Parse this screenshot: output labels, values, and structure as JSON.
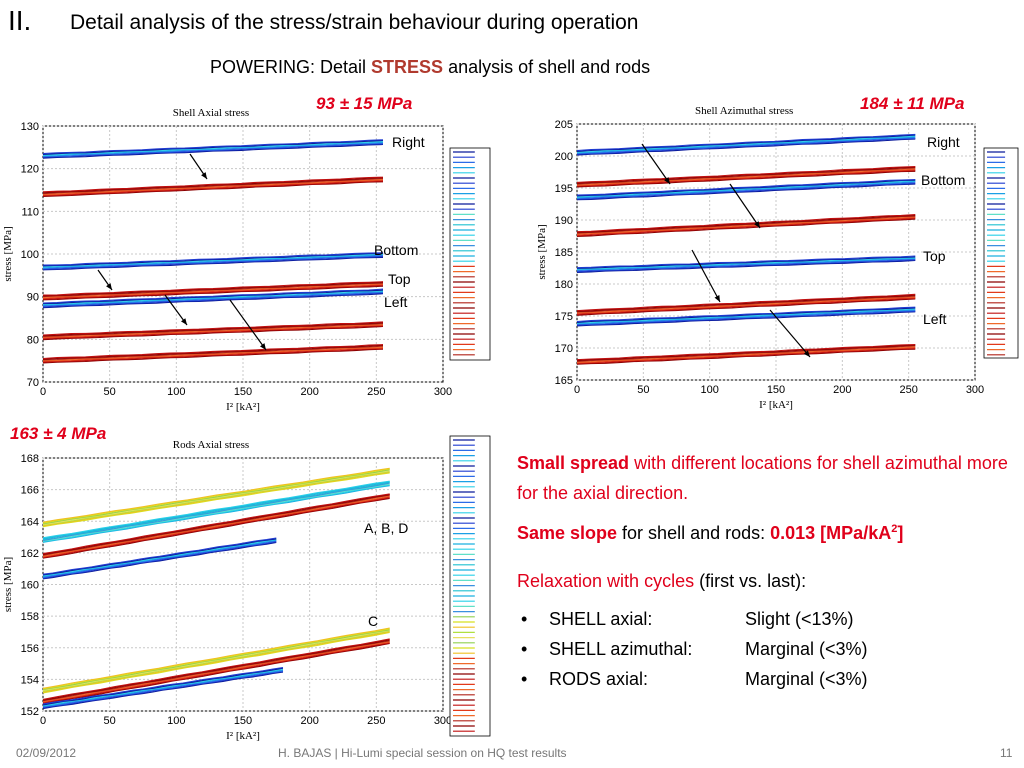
{
  "slide": {
    "number_label": "II.",
    "title": "Detail analysis of the stress/strain behaviour during operation",
    "subtitle_pre": "POWERING: Detail ",
    "subtitle_emph": "STRESS",
    "subtitle_post": " analysis of shell and rods",
    "colors": {
      "accent_red": "#e0001b",
      "dark_red": "#b03a2e"
    }
  },
  "charts": {
    "shell_axial": {
      "value_label": "93 ± 15 MPa"
    },
    "shell_azimuthal": {
      "value_label": "184 ± 11 MPa"
    },
    "rods_axial": {
      "value_label": "163 ± 4 MPa"
    }
  },
  "chart_data": [
    {
      "type": "line",
      "title": "Shell Axial stress",
      "xlabel": "I² [kA²]",
      "ylabel": "stress [MPa]",
      "xlim": [
        0,
        300
      ],
      "ylim": [
        70,
        130
      ],
      "x_ticks": [
        "0",
        "50",
        "100",
        "150",
        "200",
        "250",
        "300"
      ],
      "y_ticks": [
        "70",
        "80",
        "90",
        "100",
        "110",
        "120",
        "130"
      ],
      "grid": true,
      "series": [
        {
          "name": "Right",
          "color": "blue",
          "x": [
            0,
            255
          ],
          "values": [
            123,
            126.2
          ]
        },
        {
          "name": "Right",
          "color": "red",
          "x": [
            0,
            255
          ],
          "values": [
            114,
            117.5
          ]
        },
        {
          "name": "Bottom",
          "color": "blue",
          "x": [
            0,
            255
          ],
          "values": [
            96.8,
            99.8
          ]
        },
        {
          "name": "Top",
          "color": "red",
          "x": [
            0,
            255
          ],
          "values": [
            89.8,
            93
          ]
        },
        {
          "name": "Left",
          "color": "blue",
          "x": [
            0,
            255
          ],
          "values": [
            88,
            91.2
          ]
        },
        {
          "name": "",
          "color": "red",
          "x": [
            0,
            255
          ],
          "values": [
            80.5,
            83.5
          ]
        },
        {
          "name": "",
          "color": "red",
          "x": [
            0,
            255
          ],
          "values": [
            75,
            78.2
          ]
        }
      ],
      "annotations": [
        "Right",
        "Bottom",
        "Top",
        "Left"
      ]
    },
    {
      "type": "line",
      "title": "Shell Azimuthal stress",
      "xlabel": "I² [kA²]",
      "ylabel": "stress [MPa]",
      "xlim": [
        0,
        300
      ],
      "ylim": [
        165,
        205
      ],
      "x_ticks": [
        "0",
        "50",
        "100",
        "150",
        "200",
        "250",
        "300"
      ],
      "y_ticks": [
        "165",
        "170",
        "175",
        "180",
        "185",
        "190",
        "195",
        "200",
        "205"
      ],
      "grid": true,
      "series": [
        {
          "name": "Right",
          "color": "blue",
          "x": [
            0,
            255
          ],
          "values": [
            200.5,
            203
          ]
        },
        {
          "name": "",
          "color": "red",
          "x": [
            0,
            255
          ],
          "values": [
            195.5,
            198
          ]
        },
        {
          "name": "Bottom",
          "color": "blue",
          "x": [
            0,
            255
          ],
          "values": [
            193.5,
            196
          ]
        },
        {
          "name": "",
          "color": "red",
          "x": [
            0,
            255
          ],
          "values": [
            187.8,
            190.5
          ]
        },
        {
          "name": "Top",
          "color": "blue",
          "x": [
            0,
            255
          ],
          "values": [
            182.2,
            184
          ]
        },
        {
          "name": "",
          "color": "red",
          "x": [
            0,
            255
          ],
          "values": [
            175.5,
            178
          ]
        },
        {
          "name": "",
          "color": "blue",
          "x": [
            0,
            255
          ],
          "values": [
            173.8,
            176
          ]
        },
        {
          "name": "Left",
          "color": "red",
          "x": [
            0,
            255
          ],
          "values": [
            167.8,
            170.2
          ]
        }
      ],
      "annotations": [
        "Right",
        "Bottom",
        "Top",
        "Left"
      ]
    },
    {
      "type": "line",
      "title": "Rods Axial stress",
      "xlabel": "I² [kA²]",
      "ylabel": "stress [MPa]",
      "xlim": [
        0,
        300
      ],
      "ylim": [
        152,
        168
      ],
      "x_ticks": [
        "0",
        "50",
        "100",
        "150",
        "200",
        "250",
        "300"
      ],
      "y_ticks": [
        "152",
        "154",
        "156",
        "158",
        "160",
        "162",
        "164",
        "166",
        "168"
      ],
      "grid": true,
      "series": [
        {
          "name": "A, B, D",
          "color": "yellow",
          "x": [
            0,
            260
          ],
          "values": [
            163.8,
            167.2
          ]
        },
        {
          "name": "",
          "color": "cyan",
          "x": [
            0,
            260
          ],
          "values": [
            162.8,
            166.4
          ]
        },
        {
          "name": "",
          "color": "red",
          "x": [
            0,
            260
          ],
          "values": [
            161.8,
            165.6
          ]
        },
        {
          "name": "",
          "color": "blue",
          "x": [
            0,
            175
          ],
          "values": [
            160.5,
            162.8
          ]
        },
        {
          "name": "C",
          "color": "yellow",
          "x": [
            0,
            260
          ],
          "values": [
            153.3,
            157.1
          ]
        },
        {
          "name": "",
          "color": "red",
          "x": [
            0,
            260
          ],
          "values": [
            152.6,
            156.4
          ]
        },
        {
          "name": "",
          "color": "blue",
          "x": [
            0,
            180
          ],
          "values": [
            152.3,
            154.6
          ]
        }
      ],
      "annotations": [
        "A, B, D",
        "C"
      ]
    }
  ],
  "findings": {
    "line1_red": "Small spread",
    "line1_rest": " with different locations for shell azimuthal more for the axial direction.",
    "line2_red": "Same slope",
    "line2_mid": " for shell and rods: ",
    "line2_value": "0.013 [MPa/kA",
    "line2_sup": "2",
    "line2_end": "]",
    "line3_red": "Relaxation with cycles",
    "line3_rest": " (first vs. last):",
    "bullets": [
      {
        "label": "SHELL axial:",
        "value": "Slight (<13%)"
      },
      {
        "label": "SHELL azimuthal:",
        "value": "Marginal (<3%)"
      },
      {
        "label": "RODS axial:",
        "value": "Marginal (<3%)"
      }
    ]
  },
  "footer": {
    "date": "02/09/2012",
    "text": "H. BAJAS | Hi-Lumi special session on HQ test results",
    "page": "11"
  }
}
